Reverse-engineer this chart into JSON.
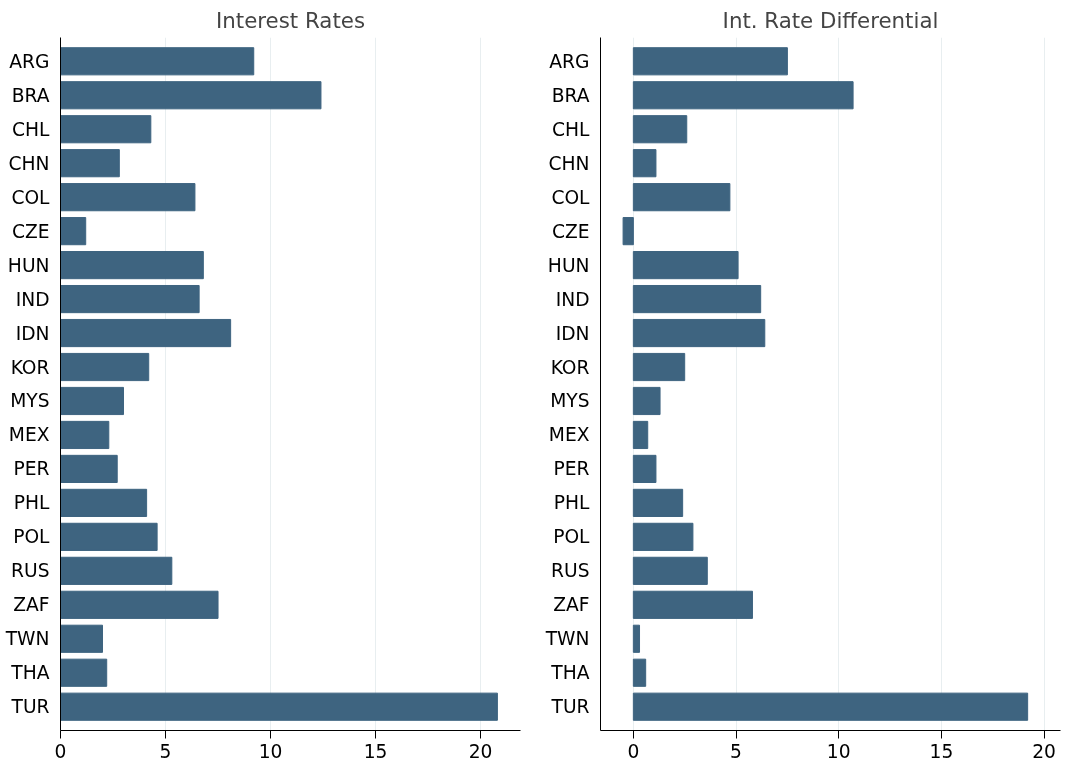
{
  "chart_data": [
    {
      "type": "bar",
      "orientation": "horizontal",
      "title": "Interest Rates",
      "categories": [
        "ARG",
        "BRA",
        "CHL",
        "CHN",
        "COL",
        "CZE",
        "HUN",
        "IND",
        "IDN",
        "KOR",
        "MYS",
        "MEX",
        "PER",
        "PHL",
        "POL",
        "RUS",
        "ZAF",
        "TWN",
        "THA",
        "TUR"
      ],
      "series": [
        {
          "color": "#3e6480",
          "values": [
            9.2,
            12.4,
            4.3,
            2.8,
            6.4,
            1.2,
            6.8,
            6.6,
            8.1,
            4.2,
            3.0,
            2.3,
            2.7,
            4.1,
            4.6,
            5.3,
            7.5,
            2.0,
            2.2,
            20.8
          ]
        }
      ],
      "xlim": [
        0,
        21.9
      ],
      "xticks": [
        0,
        5,
        10,
        15,
        20
      ],
      "grid": "x"
    },
    {
      "type": "bar",
      "orientation": "horizontal",
      "title": "Int. Rate Differential",
      "categories": [
        "ARG",
        "BRA",
        "CHL",
        "CHN",
        "COL",
        "CZE",
        "HUN",
        "IND",
        "IDN",
        "KOR",
        "MYS",
        "MEX",
        "PER",
        "PHL",
        "POL",
        "RUS",
        "ZAF",
        "TWN",
        "THA",
        "TUR"
      ],
      "series": [
        {
          "color": "#3e6480",
          "values": [
            7.5,
            10.7,
            2.6,
            1.1,
            4.7,
            -0.5,
            5.1,
            6.2,
            6.4,
            2.5,
            1.3,
            0.7,
            1.1,
            2.4,
            2.9,
            3.6,
            5.8,
            0.3,
            0.6,
            19.2
          ]
        }
      ],
      "xlim": [
        -1.6,
        20.8
      ],
      "xticks": [
        0,
        5,
        10,
        15,
        20
      ],
      "grid": "x"
    }
  ]
}
